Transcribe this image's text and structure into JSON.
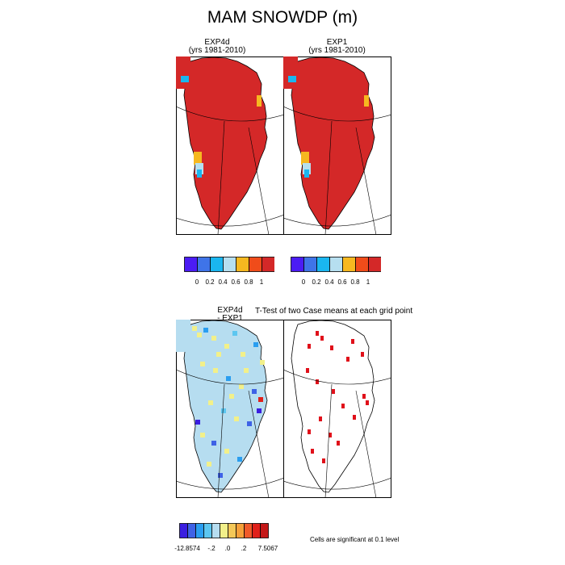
{
  "title": "MAM SNOWDP (m)",
  "panels": {
    "exp4d": {
      "line1": "EXP4d",
      "line2": "(yrs 1981-2010)"
    },
    "exp1": {
      "line1": "EXP1",
      "line2": "(yrs 1981-2010)"
    },
    "diff": {
      "line1": "EXP4d",
      "line2": "- EXP1"
    },
    "ttest": {
      "title": "T-Test of two Case means at each grid point"
    }
  },
  "colorbar_top": {
    "colors": [
      "#4b1cf4",
      "#3f74e8",
      "#1ab6f0",
      "#b6dff0",
      "#f6b820",
      "#f04c1a",
      "#d42828"
    ],
    "labels": [
      "0",
      "0.2",
      "0.4",
      "0.6",
      "0.8",
      "1"
    ]
  },
  "colorbar_diff": {
    "colors": [
      "#3a1ee0",
      "#3e62e6",
      "#2a9ef0",
      "#5cc6f0",
      "#b6ddf0",
      "#f2f08a",
      "#f4c858",
      "#f6a03a",
      "#f05a2a",
      "#e0201a",
      "#c41818"
    ],
    "labels": [
      "-12.8574",
      "-.2",
      ".0",
      ".2",
      "7.5067"
    ]
  },
  "significance_note": "Cells are significant at 0.1 level",
  "chart_data": [
    {
      "type": "heatmap",
      "title": "EXP4d (yrs 1981-2010)",
      "variable": "SNOWDP",
      "units": "m",
      "season": "MAM",
      "colorbar_levels": [
        0,
        0.2,
        0.4,
        0.6,
        0.8,
        1
      ],
      "description_values": "Greenland ice sheet almost entirely >1 m; lower values on south-west margin and north-east coast"
    },
    {
      "type": "heatmap",
      "title": "EXP1 (yrs 1981-2010)",
      "variable": "SNOWDP",
      "units": "m",
      "colorbar_levels": [
        0,
        0.2,
        0.4,
        0.6,
        0.8,
        1
      ]
    },
    {
      "type": "heatmap",
      "title": "EXP4d - EXP1",
      "colorbar_levels": [
        -12.8574,
        -0.2,
        0.0,
        0.2,
        7.5067
      ]
    },
    {
      "type": "heatmap",
      "title": "T-Test of two Case means at each grid point",
      "legend": "Cells are significant at 0.1 level"
    }
  ]
}
